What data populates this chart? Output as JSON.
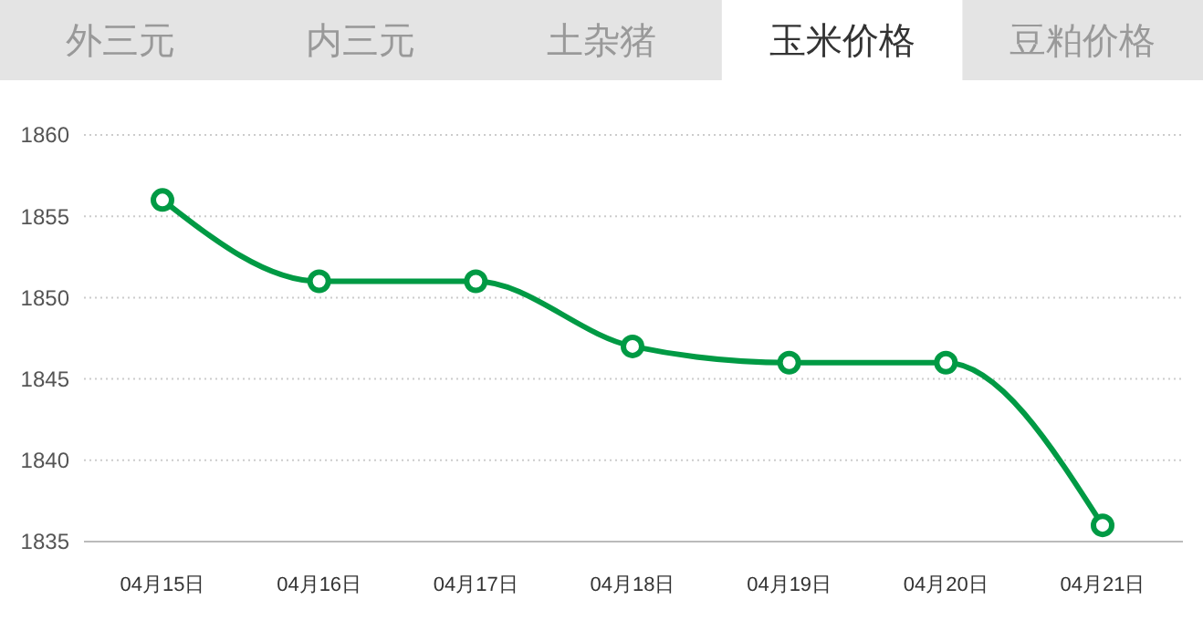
{
  "chart_data": {
    "type": "line",
    "title": "玉米价格",
    "annotations": [
      "外三元",
      "内三元",
      "土杂猪",
      "豆粕价格"
    ],
    "categories": [
      "04月15日",
      "04月16日",
      "04月17日",
      "04月18日",
      "04月19日",
      "04月20日",
      "04月21日"
    ],
    "series": [
      {
        "color": "#009a44",
        "values": [
          1856,
          1851,
          1851,
          1847,
          1846,
          1846,
          1836
        ]
      }
    ],
    "ylim": [
      1835,
      1860
    ],
    "yticks": [
      1835,
      1840,
      1845,
      1850,
      1855,
      1860
    ],
    "grid": "y",
    "marker": "circle",
    "line_style": "solid"
  }
}
